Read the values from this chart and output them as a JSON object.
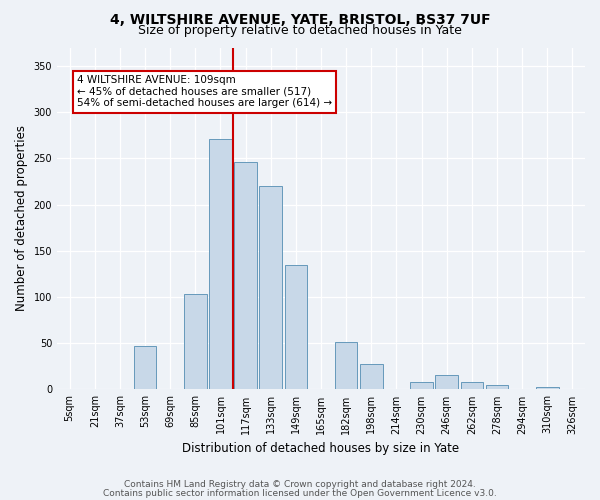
{
  "title_line1": "4, WILTSHIRE AVENUE, YATE, BRISTOL, BS37 7UF",
  "title_line2": "Size of property relative to detached houses in Yate",
  "xlabel": "Distribution of detached houses by size in Yate",
  "ylabel": "Number of detached properties",
  "bar_color": "#c8d8e8",
  "bar_edge_color": "#6699bb",
  "categories": [
    "5sqm",
    "21sqm",
    "37sqm",
    "53sqm",
    "69sqm",
    "85sqm",
    "101sqm",
    "117sqm",
    "133sqm",
    "149sqm",
    "165sqm",
    "182sqm",
    "198sqm",
    "214sqm",
    "230sqm",
    "246sqm",
    "262sqm",
    "278sqm",
    "294sqm",
    "310sqm",
    "326sqm"
  ],
  "bar_heights": [
    0,
    0,
    0,
    47,
    0,
    103,
    271,
    246,
    220,
    135,
    0,
    51,
    27,
    0,
    8,
    16,
    8,
    5,
    0,
    3,
    0
  ],
  "ylim": [
    0,
    370
  ],
  "yticks": [
    0,
    50,
    100,
    150,
    200,
    250,
    300,
    350
  ],
  "vline_color": "#cc0000",
  "annotation_text": "4 WILTSHIRE AVENUE: 109sqm\n← 45% of detached houses are smaller (517)\n54% of semi-detached houses are larger (614) →",
  "annotation_box_color": "#ffffff",
  "annotation_box_edge_color": "#cc0000",
  "footer_line1": "Contains HM Land Registry data © Crown copyright and database right 2024.",
  "footer_line2": "Contains public sector information licensed under the Open Government Licence v3.0.",
  "background_color": "#eef2f7",
  "grid_color": "#ffffff",
  "title_fontsize": 10,
  "subtitle_fontsize": 9,
  "axis_label_fontsize": 8.5,
  "tick_fontsize": 7,
  "footer_fontsize": 6.5,
  "annotation_fontsize": 7.5
}
